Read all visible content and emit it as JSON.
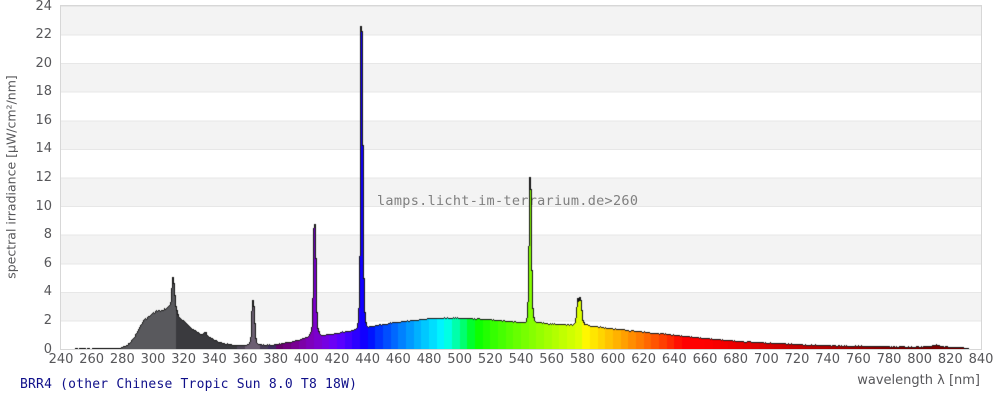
{
  "chart_data": {
    "type": "area",
    "title": "BRR4 (other Chinese Tropic Sun 8.0 T8 18W)",
    "watermark": "lamps.licht-im-terrarium.de>260",
    "xlabel": "wavelength λ [nm]",
    "ylabel": "spectral irradiance [µW/cm²/nm]",
    "x_axis": {
      "min": 240,
      "max": 840,
      "tick_step": 20
    },
    "y_axis": {
      "min": 0,
      "max": 24,
      "tick_step": 2
    },
    "legend": "none",
    "grid": "alternating gray/white horizontal bands every 2 units with gridlines",
    "fill_style": "area filled with per-wavelength spectral colors in ~5nm bands; gray below 315nm, dark gray 315-380nm, black top outline",
    "peaks": [
      {
        "nm": 313,
        "value": 5.05
      },
      {
        "nm": 365,
        "value": 3.55
      },
      {
        "nm": 405,
        "value": 9.0
      },
      {
        "nm": 436,
        "value": 22.7
      },
      {
        "nm": 546,
        "value": 12.3
      },
      {
        "nm": 577,
        "value": 3.6
      },
      {
        "nm": 579,
        "value": 3.65
      }
    ],
    "points": [
      [
        240,
        0
      ],
      [
        249,
        0
      ],
      [
        250,
        0.05
      ],
      [
        252,
        0.02
      ],
      [
        254,
        0.06
      ],
      [
        256,
        0.03
      ],
      [
        258,
        0.05
      ],
      [
        260,
        0.03
      ],
      [
        262,
        0.06
      ],
      [
        264,
        0.03
      ],
      [
        266,
        0.06
      ],
      [
        268,
        0.04
      ],
      [
        270,
        0.07
      ],
      [
        272,
        0.04
      ],
      [
        274,
        0.07
      ],
      [
        276,
        0.05
      ],
      [
        278,
        0.08
      ],
      [
        280,
        0.12
      ],
      [
        282,
        0.2
      ],
      [
        284,
        0.35
      ],
      [
        286,
        0.55
      ],
      [
        288,
        0.85
      ],
      [
        290,
        1.25
      ],
      [
        292,
        1.65
      ],
      [
        294,
        2.0
      ],
      [
        295,
        2.15
      ],
      [
        296,
        2.1
      ],
      [
        297,
        2.3
      ],
      [
        298,
        2.25
      ],
      [
        299,
        2.4
      ],
      [
        300,
        2.55
      ],
      [
        301,
        2.45
      ],
      [
        302,
        2.7
      ],
      [
        303,
        2.6
      ],
      [
        304,
        2.75
      ],
      [
        305,
        2.65
      ],
      [
        306,
        2.75
      ],
      [
        307,
        2.7
      ],
      [
        308,
        2.85
      ],
      [
        309,
        2.8
      ],
      [
        310,
        2.95
      ],
      [
        311,
        3.05
      ],
      [
        312,
        3.4
      ],
      [
        312.7,
        5.05
      ],
      [
        313.4,
        4.3
      ],
      [
        314.2,
        3.05
      ],
      [
        315,
        2.7
      ],
      [
        316,
        2.35
      ],
      [
        317,
        2.25
      ],
      [
        318,
        2.1
      ],
      [
        320,
        1.95
      ],
      [
        322,
        1.75
      ],
      [
        324,
        1.55
      ],
      [
        326,
        1.4
      ],
      [
        328,
        1.3
      ],
      [
        330,
        1.15
      ],
      [
        331,
        1.05
      ],
      [
        332,
        1.0
      ],
      [
        333,
        1.1
      ],
      [
        334,
        1.2
      ],
      [
        335,
        1.0
      ],
      [
        336,
        0.9
      ],
      [
        338,
        0.78
      ],
      [
        340,
        0.65
      ],
      [
        342,
        0.55
      ],
      [
        344,
        0.48
      ],
      [
        346,
        0.42
      ],
      [
        348,
        0.37
      ],
      [
        350,
        0.33
      ],
      [
        353,
        0.3
      ],
      [
        356,
        0.28
      ],
      [
        359,
        0.28
      ],
      [
        362,
        0.3
      ],
      [
        363,
        0.4
      ],
      [
        364,
        0.9
      ],
      [
        364.8,
        3.55
      ],
      [
        365.5,
        2.7
      ],
      [
        366.3,
        0.9
      ],
      [
        367.2,
        0.45
      ],
      [
        368,
        0.38
      ],
      [
        370,
        0.32
      ],
      [
        372,
        0.3
      ],
      [
        375,
        0.3
      ],
      [
        378,
        0.32
      ],
      [
        380,
        0.34
      ],
      [
        383,
        0.38
      ],
      [
        386,
        0.43
      ],
      [
        389,
        0.48
      ],
      [
        392,
        0.55
      ],
      [
        395,
        0.62
      ],
      [
        398,
        0.72
      ],
      [
        400,
        0.8
      ],
      [
        402,
        0.95
      ],
      [
        403.5,
        1.3
      ],
      [
        404.2,
        2.5
      ],
      [
        404.7,
        7.5
      ],
      [
        405.1,
        9.0
      ],
      [
        405.6,
        7.0
      ],
      [
        406.2,
        2.8
      ],
      [
        407,
        1.5
      ],
      [
        408,
        1.15
      ],
      [
        410,
        1.0
      ],
      [
        412,
        1.0
      ],
      [
        414,
        1.02
      ],
      [
        416,
        1.06
      ],
      [
        418,
        1.1
      ],
      [
        420,
        1.12
      ],
      [
        423,
        1.18
      ],
      [
        426,
        1.24
      ],
      [
        429,
        1.3
      ],
      [
        431,
        1.35
      ],
      [
        433,
        1.45
      ],
      [
        433.8,
        1.9
      ],
      [
        434.5,
        3.2
      ],
      [
        435.1,
        7.5
      ],
      [
        435.6,
        22.7
      ],
      [
        436.1,
        20.0
      ],
      [
        436.6,
        8.0
      ],
      [
        437.2,
        3.4
      ],
      [
        438,
        2.0
      ],
      [
        439,
        1.65
      ],
      [
        440,
        1.55
      ],
      [
        443,
        1.6
      ],
      [
        446,
        1.66
      ],
      [
        450,
        1.74
      ],
      [
        455,
        1.83
      ],
      [
        460,
        1.91
      ],
      [
        465,
        1.97
      ],
      [
        470,
        2.03
      ],
      [
        475,
        2.09
      ],
      [
        480,
        2.13
      ],
      [
        485,
        2.16
      ],
      [
        490,
        2.19
      ],
      [
        495,
        2.2
      ],
      [
        500,
        2.19
      ],
      [
        505,
        2.17
      ],
      [
        510,
        2.14
      ],
      [
        515,
        2.11
      ],
      [
        520,
        2.07
      ],
      [
        525,
        2.02
      ],
      [
        530,
        1.98
      ],
      [
        535,
        1.94
      ],
      [
        540,
        1.91
      ],
      [
        542,
        1.89
      ],
      [
        543.5,
        1.95
      ],
      [
        544.3,
        2.4
      ],
      [
        545,
        5.0
      ],
      [
        545.6,
        12.3
      ],
      [
        546.1,
        10.5
      ],
      [
        546.7,
        4.0
      ],
      [
        547.4,
        2.4
      ],
      [
        548.5,
        2.0
      ],
      [
        550,
        1.88
      ],
      [
        554,
        1.84
      ],
      [
        558,
        1.8
      ],
      [
        562,
        1.77
      ],
      [
        566,
        1.74
      ],
      [
        570,
        1.72
      ],
      [
        573,
        1.7
      ],
      [
        574,
        1.71
      ],
      [
        575.5,
        1.85
      ],
      [
        576.3,
        2.6
      ],
      [
        576.9,
        3.6
      ],
      [
        577.5,
        3.1
      ],
      [
        578.3,
        3.65
      ],
      [
        579,
        2.9
      ],
      [
        579.8,
        2.0
      ],
      [
        581,
        1.78
      ],
      [
        583,
        1.7
      ],
      [
        586,
        1.64
      ],
      [
        590,
        1.58
      ],
      [
        594,
        1.52
      ],
      [
        598,
        1.47
      ],
      [
        602,
        1.42
      ],
      [
        606,
        1.37
      ],
      [
        610,
        1.32
      ],
      [
        615,
        1.26
      ],
      [
        620,
        1.21
      ],
      [
        625,
        1.16
      ],
      [
        630,
        1.1
      ],
      [
        635,
        1.05
      ],
      [
        640,
        1.0
      ],
      [
        645,
        0.94
      ],
      [
        650,
        0.88
      ],
      [
        655,
        0.82
      ],
      [
        660,
        0.77
      ],
      [
        665,
        0.72
      ],
      [
        670,
        0.67
      ],
      [
        675,
        0.62
      ],
      [
        680,
        0.58
      ],
      [
        685,
        0.54
      ],
      [
        690,
        0.51
      ],
      [
        695,
        0.48
      ],
      [
        700,
        0.45
      ],
      [
        704,
        0.42
      ],
      [
        707,
        0.44
      ],
      [
        710,
        0.4
      ],
      [
        715,
        0.37
      ],
      [
        720,
        0.34
      ],
      [
        725,
        0.32
      ],
      [
        730,
        0.3
      ],
      [
        735,
        0.28
      ],
      [
        740,
        0.27
      ],
      [
        745,
        0.26
      ],
      [
        750,
        0.25
      ],
      [
        755,
        0.24
      ],
      [
        760,
        0.23
      ],
      [
        765,
        0.22
      ],
      [
        770,
        0.21
      ],
      [
        775,
        0.2
      ],
      [
        780,
        0.19
      ],
      [
        785,
        0.18
      ],
      [
        790,
        0.18
      ],
      [
        795,
        0.17
      ],
      [
        800,
        0.17
      ],
      [
        805,
        0.18
      ],
      [
        808,
        0.2
      ],
      [
        810.5,
        0.3
      ],
      [
        813,
        0.22
      ],
      [
        816,
        0.18
      ],
      [
        820,
        0.16
      ],
      [
        824,
        0.14
      ],
      [
        828,
        0.12
      ],
      [
        831,
        0.08
      ],
      [
        832,
        0.03
      ],
      [
        833,
        0
      ],
      [
        840,
        0
      ]
    ],
    "colors": {
      "uvb_fill": "#59595D",
      "uva_fill": "#3A3A3E",
      "uva_365_fill": "#6C5F72",
      "outline": "#141414",
      "band_gray": "#F3F3F3",
      "grid_line": "#E7E7E7",
      "plot_border": "#D7D7D7",
      "axis_text": "#57575A",
      "title_text": "#10108A",
      "watermark_text": "#7F7F7F"
    }
  }
}
